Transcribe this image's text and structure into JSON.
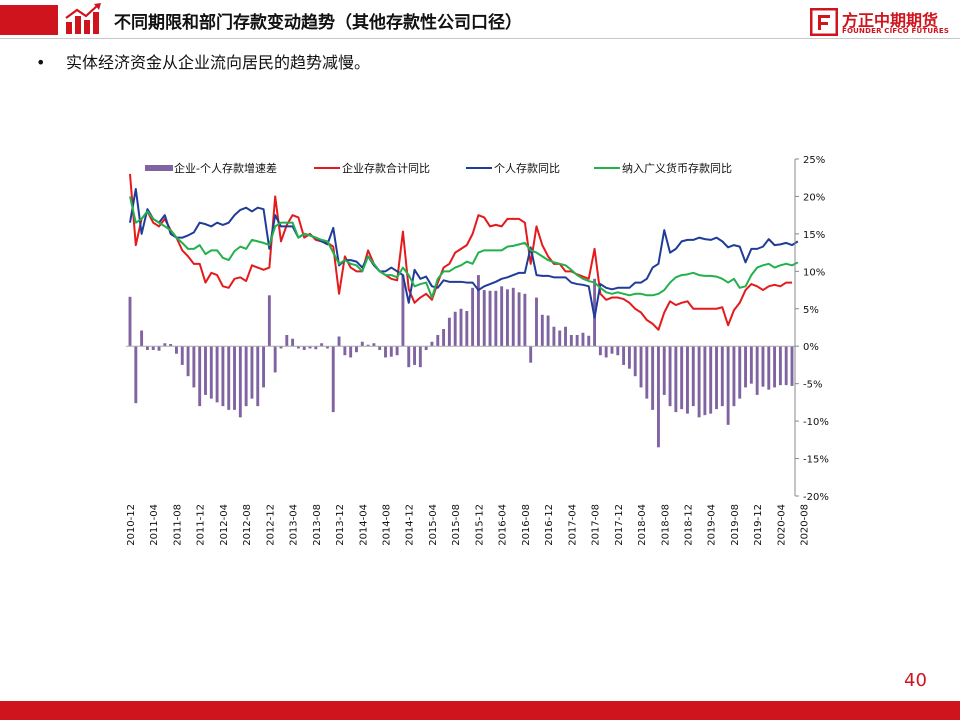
{
  "header": {
    "title": "不同期限和部门存款变动趋势（其他存款性公司口径）",
    "logo_cn": "方正中期期货",
    "logo_en": "FOUNDER CIFCO FUTURES"
  },
  "bullet": {
    "marker": "•",
    "text": "实体经济资金从企业流向居民的趋势减慢。"
  },
  "page_number": "40",
  "colors": {
    "brand_red": "#d0141e",
    "bar": "#8064a2",
    "corporate_line": "#e41a1c",
    "personal_line": "#1f3c99",
    "broad_money_line": "#22b14c"
  },
  "chart_data": {
    "type": "bar+line",
    "title": "",
    "x_start": "2010-12",
    "x_end": "2020-11",
    "tick_labels": [
      "2010-12",
      "2011-04",
      "2011-08",
      "2011-12",
      "2012-04",
      "2012-08",
      "2012-12",
      "2013-04",
      "2013-08",
      "2013-12",
      "2014-04",
      "2014-08",
      "2014-12",
      "2015-04",
      "2015-08",
      "2015-12",
      "2016-04",
      "2016-08",
      "2016-12",
      "2017-04",
      "2017-08",
      "2017-12",
      "2018-04",
      "2018-08",
      "2018-12",
      "2019-04",
      "2019-08",
      "2019-12",
      "2020-04",
      "2020-08"
    ],
    "y_axis": {
      "min": -20,
      "max": 25,
      "step": 5,
      "unit": "%",
      "tick_labels": [
        "25%",
        "20%",
        "15%",
        "10%",
        "5%",
        "0%",
        "-5%",
        "-10%",
        "-15%",
        "-20%"
      ],
      "position": "right"
    },
    "grid": false,
    "legend_position": "top",
    "series": [
      {
        "name": "企业-个人存款增速差",
        "kind": "bar",
        "values": [
          6.6,
          -7.6,
          2.1,
          -0.5,
          -0.5,
          -0.6,
          0.4,
          0.3,
          -1.0,
          -2.5,
          -4.0,
          -5.5,
          -8.0,
          -6.5,
          -7.0,
          -7.5,
          -8.0,
          -8.5,
          -8.5,
          -9.5,
          -8.0,
          -7.0,
          -8.0,
          -5.5,
          6.8,
          -3.5,
          -0.3,
          1.5,
          1.0,
          -0.3,
          -0.5,
          -0.3,
          -0.4,
          0.4,
          -0.3,
          -8.8,
          1.3,
          -1.2,
          -1.5,
          -0.8,
          0.6,
          0.2,
          0.4,
          -0.5,
          -1.5,
          -1.4,
          -1.2,
          9.5,
          -2.8,
          -2.5,
          -2.8,
          -0.5,
          0.6,
          1.5,
          2.3,
          3.8,
          4.6,
          5.0,
          4.7,
          7.8,
          9.5,
          7.5,
          7.4,
          7.4,
          8.0,
          7.6,
          7.8,
          7.2,
          7.0,
          -2.2,
          6.5,
          4.2,
          4.1,
          2.6,
          2.1,
          2.6,
          1.5,
          1.5,
          1.8,
          1.4,
          9.0,
          -1.2,
          -1.5,
          -1.0,
          -1.2,
          -2.5,
          -3.0,
          -4.0,
          -5.5,
          -7.0,
          -8.5,
          -13.5,
          -6.5,
          -8.0,
          -8.8,
          -8.4,
          -9.0,
          -8.0,
          -9.5,
          -9.2,
          -9.0,
          -8.4,
          -8.0,
          -10.5,
          -8.0,
          -7.0,
          -5.5,
          -5.0,
          -6.5,
          -5.4,
          -5.8,
          -5.5,
          -5.2,
          -5.2,
          -5.3
        ]
      },
      {
        "name": "企业存款合计同比",
        "kind": "line",
        "values": [
          23.0,
          13.5,
          17.0,
          18.0,
          16.5,
          16.0,
          17.0,
          15.5,
          14.5,
          12.8,
          12.0,
          11.0,
          11.0,
          8.5,
          9.8,
          9.5,
          8.0,
          7.8,
          9.0,
          9.2,
          8.7,
          10.8,
          10.5,
          10.2,
          10.5,
          20.0,
          14.0,
          16.2,
          17.5,
          17.2,
          14.5,
          15.0,
          14.2,
          14.0,
          13.8,
          13.3,
          7.0,
          12.0,
          10.5,
          10.0,
          10.0,
          12.8,
          11.0,
          10.0,
          9.5,
          9.0,
          8.8,
          15.3,
          7.6,
          5.8,
          6.5,
          7.0,
          6.2,
          8.5,
          10.5,
          11.0,
          12.5,
          13.0,
          13.5,
          15.0,
          17.5,
          17.2,
          16.0,
          16.2,
          16.0,
          17.0,
          17.0,
          17.0,
          16.5,
          11.0,
          16.0,
          13.5,
          12.0,
          11.0,
          11.0,
          10.0,
          10.0,
          9.6,
          9.3,
          9.0,
          13.0,
          7.0,
          6.2,
          6.5,
          6.5,
          6.3,
          5.8,
          5.0,
          4.5,
          3.5,
          3.0,
          2.2,
          4.5,
          6.0,
          5.5,
          5.8,
          6.0,
          5.0,
          5.0,
          5.0,
          5.0,
          5.0,
          5.2,
          2.8,
          4.8,
          5.8,
          7.5,
          8.3,
          8.0,
          7.5,
          8.0,
          8.2,
          8.0,
          8.5,
          8.5
        ]
      },
      {
        "name": "个人存款同比",
        "kind": "line",
        "values": [
          16.5,
          21.0,
          15.0,
          18.3,
          17.0,
          16.5,
          17.5,
          15.0,
          14.5,
          14.5,
          14.8,
          15.2,
          16.5,
          16.3,
          16.0,
          16.5,
          16.2,
          16.5,
          17.5,
          18.2,
          18.5,
          18.0,
          18.5,
          18.3,
          13.0,
          17.5,
          16.0,
          16.0,
          16.0,
          14.5,
          15.0,
          14.8,
          14.5,
          14.0,
          13.6,
          15.8,
          10.8,
          11.5,
          11.5,
          11.3,
          10.5,
          12.0,
          10.8,
          10.0,
          10.0,
          10.5,
          10.0,
          9.5,
          5.8,
          10.2,
          9.0,
          9.3,
          8.0,
          7.8,
          8.8,
          8.6,
          8.6,
          8.6,
          8.5,
          8.5,
          7.5,
          8.0,
          8.3,
          8.6,
          9.0,
          9.2,
          9.5,
          9.8,
          9.8,
          13.2,
          9.5,
          9.4,
          9.4,
          9.2,
          9.2,
          9.2,
          8.5,
          8.3,
          8.2,
          8.0,
          3.8,
          8.3,
          7.8,
          7.6,
          7.8,
          7.8,
          7.8,
          8.5,
          8.5,
          9.0,
          10.5,
          11.0,
          15.5,
          12.5,
          13.0,
          14.0,
          14.2,
          14.2,
          14.5,
          14.3,
          14.2,
          14.5,
          14.0,
          13.2,
          13.5,
          13.3,
          11.2,
          13.0,
          13.0,
          13.3,
          14.3,
          13.5,
          13.6,
          13.8,
          13.5,
          14.0
        ]
      },
      {
        "name": "纳入广义货币存款同比",
        "kind": "line",
        "values": [
          20.0,
          16.5,
          17.0,
          18.0,
          17.0,
          16.5,
          16.0,
          15.5,
          14.5,
          13.8,
          13.0,
          13.0,
          13.5,
          12.3,
          12.8,
          12.8,
          11.8,
          11.5,
          12.7,
          13.3,
          13.0,
          14.2,
          14.0,
          13.8,
          13.5,
          16.0,
          16.5,
          16.5,
          16.5,
          14.5,
          15.0,
          14.8,
          14.5,
          14.2,
          14.0,
          12.5,
          11.0,
          11.5,
          11.0,
          10.8,
          10.0,
          12.0,
          11.0,
          10.0,
          9.5,
          9.5,
          9.2,
          10.5,
          9.5,
          8.0,
          8.3,
          8.5,
          6.5,
          9.0,
          10.0,
          10.0,
          10.5,
          10.8,
          11.3,
          11.0,
          12.5,
          12.8,
          12.8,
          12.8,
          12.8,
          13.3,
          13.4,
          13.6,
          13.8,
          12.8,
          12.5,
          12.0,
          11.5,
          11.2,
          11.0,
          10.8,
          10.2,
          9.5,
          9.0,
          8.7,
          8.5,
          7.8,
          7.2,
          7.0,
          7.2,
          7.0,
          6.8,
          7.0,
          7.0,
          6.8,
          6.8,
          7.0,
          7.5,
          8.5,
          9.2,
          9.5,
          9.6,
          9.8,
          9.5,
          9.4,
          9.4,
          9.3,
          9.0,
          8.5,
          9.0,
          7.8,
          8.0,
          9.5,
          10.5,
          10.8,
          11.0,
          10.5,
          10.8,
          11.0,
          10.8,
          11.2
        ]
      }
    ]
  }
}
